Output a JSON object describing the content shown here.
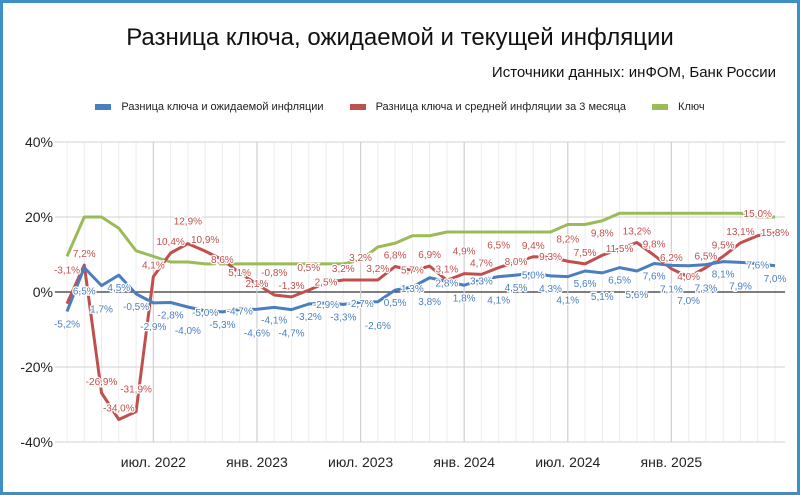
{
  "chart_data": {
    "type": "line",
    "title": "Разница ключа, ожидаемой и текущей инфляции",
    "subtitle": "Источники данных: инФОМ, Банк России",
    "xlabel": "",
    "ylabel": "",
    "x_start": "2022-02",
    "x_end": "2025-07",
    "x_tick_labels": [
      "июл. 2022",
      "янв. 2023",
      "июл. 2023",
      "янв. 2024",
      "июл. 2024",
      "янв. 2025"
    ],
    "x_tick_index": [
      5,
      11,
      17,
      23,
      29,
      35
    ],
    "y_tick_labels": [
      "40%",
      "20%",
      "0%",
      "-20%",
      "-40%"
    ],
    "ylim": [
      -40,
      40
    ],
    "grid": true,
    "legend_position": "top",
    "series": [
      {
        "name": "Разница ключа и ожидаемой инфляции",
        "color": "#4a7ebf",
        "labels": "below",
        "values": [
          -5.2,
          6.5,
          1.7,
          4.5,
          -0.5,
          -2.9,
          -2.8,
          -4.0,
          -5.0,
          -5.3,
          -4.7,
          -4.6,
          -4.1,
          -4.7,
          -3.2,
          -2.9,
          -3.3,
          -2.7,
          -2.6,
          0.5,
          1.3,
          3.8,
          2.8,
          1.8,
          3.3,
          4.1,
          4.5,
          5.0,
          4.3,
          4.1,
          5.6,
          5.1,
          6.5,
          5.6,
          7.6,
          7.1,
          7.0,
          7.3,
          8.1,
          7.9,
          7.6,
          7.0
        ]
      },
      {
        "name": "Разница ключа и средней инфляции за 3 месяца",
        "color": "#c0504d",
        "labels": "above",
        "values": [
          -3.1,
          7.2,
          -26.9,
          -34.0,
          -31.9,
          4.1,
          10.4,
          12.9,
          10.9,
          8.6,
          5.1,
          2.1,
          -0.8,
          -1.3,
          0.5,
          2.5,
          3.2,
          3.2,
          3.2,
          6.8,
          5.7,
          6.9,
          3.1,
          4.9,
          4.7,
          6.5,
          8.0,
          9.4,
          9.3,
          8.2,
          7.5,
          9.8,
          11.5,
          13.2,
          9.8,
          6.2,
          4.0,
          6.5,
          9.5,
          13.1,
          15.0,
          15.8
        ]
      },
      {
        "name": "Ключ",
        "color": "#9bbb59",
        "labels": "none",
        "values": [
          9.5,
          20,
          20,
          17,
          11,
          9.5,
          8,
          8,
          7.5,
          7.5,
          7.5,
          7.5,
          7.5,
          7.5,
          7.5,
          7.5,
          7.5,
          8.5,
          12,
          13,
          15,
          15,
          16,
          16,
          16,
          16,
          16,
          16,
          16,
          18,
          18,
          19,
          21,
          21,
          21,
          21,
          21,
          21,
          21,
          21,
          20,
          20
        ]
      }
    ]
  }
}
